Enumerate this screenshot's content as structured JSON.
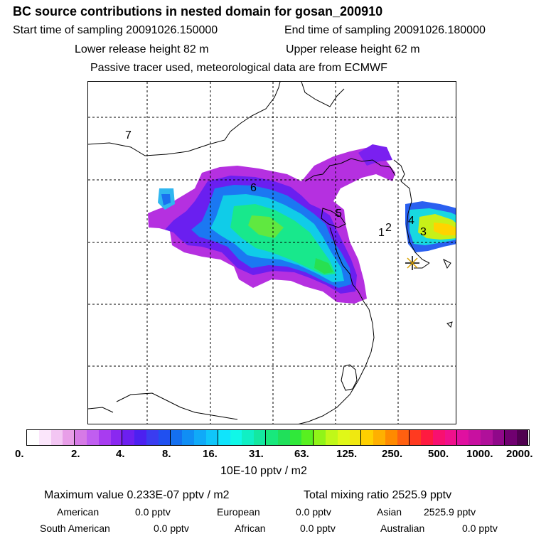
{
  "header": {
    "title": "BC  source contributions in nested domain for gosan_200910",
    "start_label": "Start time of sampling 20091026.150000",
    "end_label": "End time of sampling 20091026.180000",
    "lower_label": "Lower release height   82 m",
    "upper_label": "Upper release height   62 m",
    "note": "Passive tracer used, meteorological data are from ECMWF"
  },
  "map": {
    "labels": [
      "7",
      "6",
      "5",
      "1",
      "2",
      "4",
      "3"
    ],
    "station_marker": "receptor-star-icon"
  },
  "colorbar": {
    "ticks": [
      "0.",
      "2.",
      "4.",
      "8.",
      "16.",
      "31.",
      "63.",
      "125.",
      "250.",
      "500.",
      "1000.",
      "2000."
    ],
    "unit": "10E-10 pptv / m2",
    "colors": [
      "#ffffff",
      "#fbe6fb",
      "#f3c6f3",
      "#e89ee8",
      "#d67ae6",
      "#c05ef0",
      "#a83cf0",
      "#8a28f0",
      "#6d1ff0",
      "#4c20f0",
      "#3a3cf0",
      "#2050f0",
      "#1470f0",
      "#108ef4",
      "#10aaf8",
      "#10c6fa",
      "#10e4fc",
      "#10f8e8",
      "#10f0c4",
      "#14e8a0",
      "#18e87c",
      "#20e05a",
      "#30e83a",
      "#58f020",
      "#90f418",
      "#c0f818",
      "#e0f818",
      "#f0e810",
      "#ffd000",
      "#ffb000",
      "#ff8a00",
      "#ff6010",
      "#ff3a20",
      "#ff1a40",
      "#f81070",
      "#f0108c",
      "#e010a0",
      "#c810a0",
      "#b0109a",
      "#90088a",
      "#700070",
      "#500050"
    ]
  },
  "stats": {
    "maximum": "Maximum value  0.233E-07 pptv / m2",
    "total": "Total mixing ratio     2525.9 pptv",
    "american_label": "American",
    "american_value": "0.0 pptv",
    "european_label": "European",
    "european_value": "0.0 pptv",
    "asian_label": "Asian",
    "asian_value": "2525.9 pptv",
    "south_american_label": "South American",
    "south_american_value": "0.0 pptv",
    "african_label": "African",
    "african_value": "0.0 pptv",
    "australian_label": "Australian",
    "australian_value": "0.0 pptv"
  }
}
